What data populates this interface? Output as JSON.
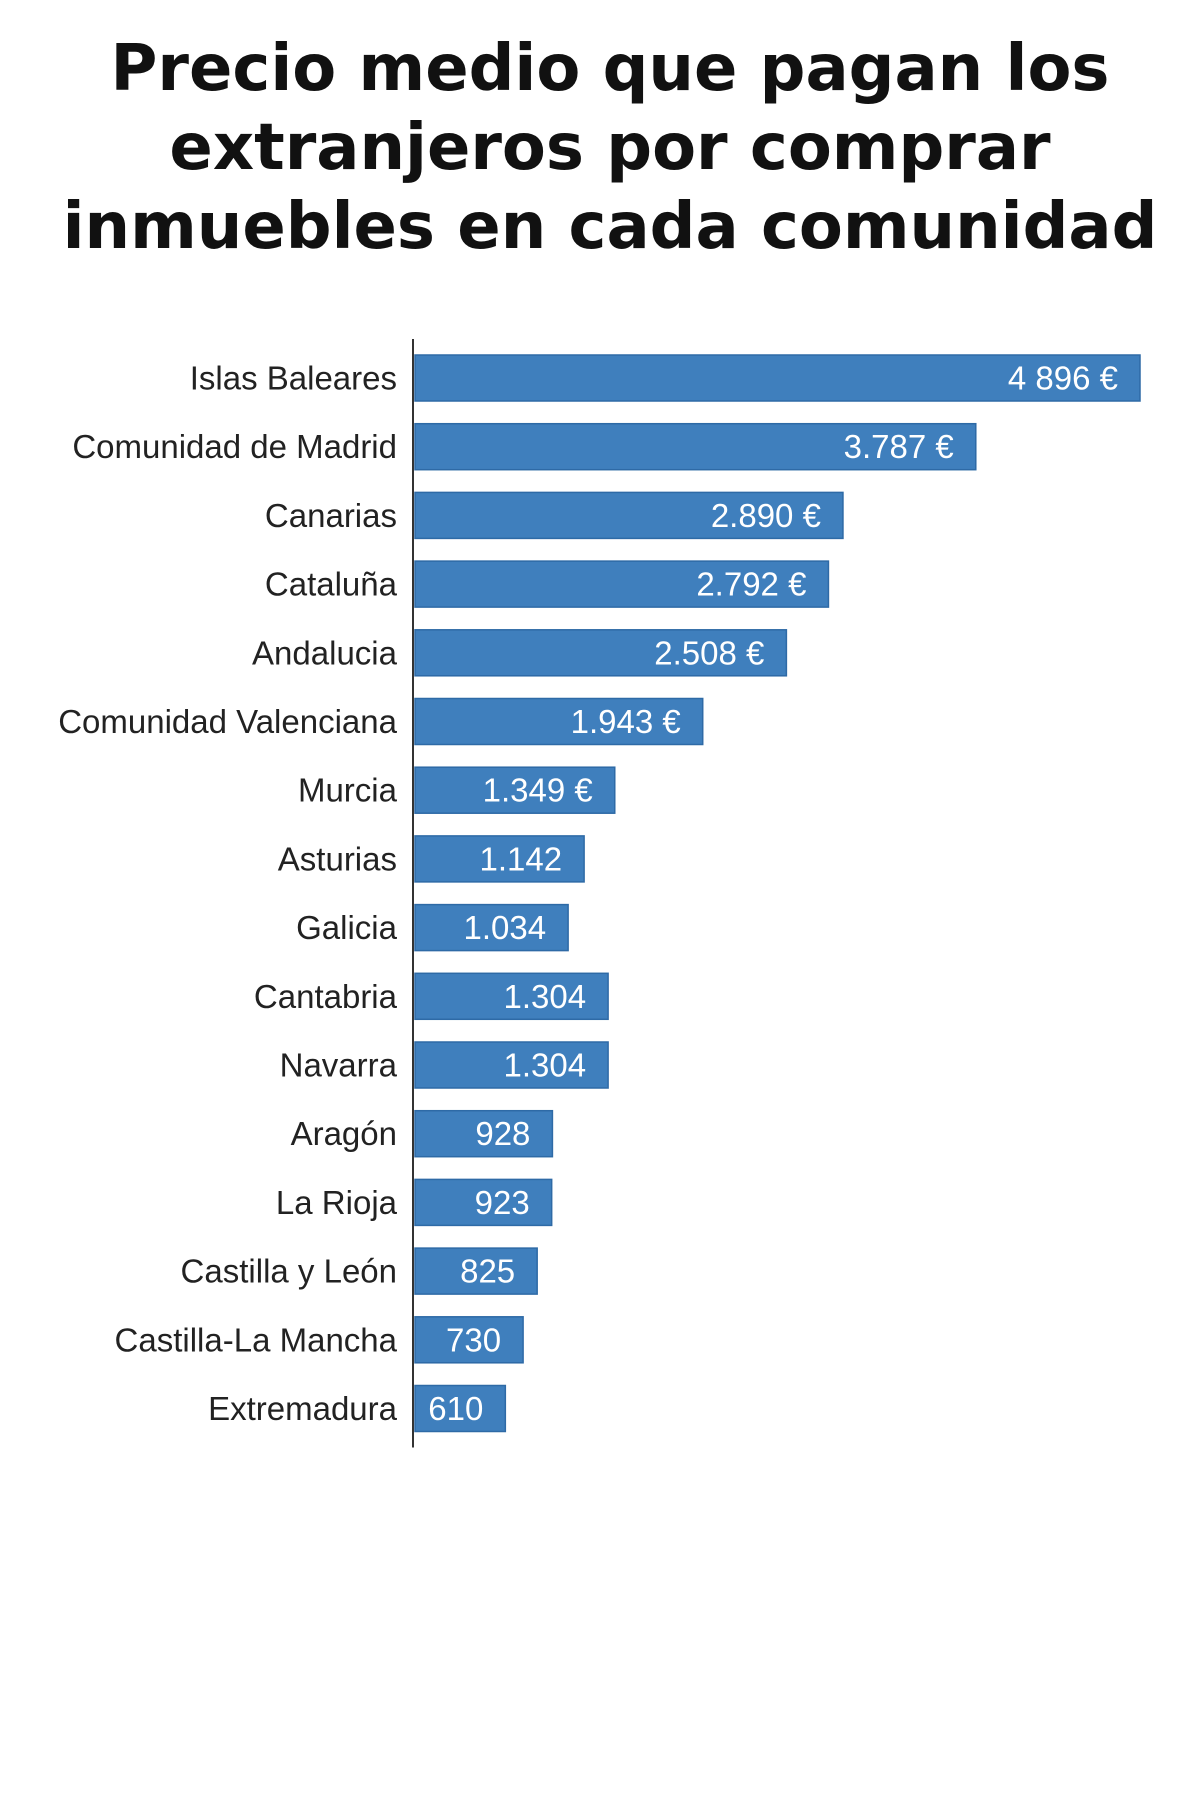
{
  "chart_data": {
    "type": "bar",
    "orientation": "horizontal",
    "title_lines": [
      "Precio medio que pagan los",
      "extranjeros por comprar",
      "inmuebles en cada comunidad"
    ],
    "categories": [
      "Islas Baleares",
      "Comunidad de Madrid",
      "Canarias",
      "Cataluña",
      "Andalucia",
      "Comunidad Valenciana",
      "Murcia",
      "Asturias",
      "Galicia",
      "Cantabria",
      "Navarra",
      "Aragón",
      "La Rioja",
      "Castilla y León",
      "Castilla-La Mancha",
      "Extremadura"
    ],
    "values": [
      4896,
      3787,
      2890,
      2792,
      2508,
      1943,
      1349,
      1142,
      1034,
      1304,
      1304,
      928,
      923,
      825,
      730,
      610
    ],
    "value_labels": [
      "4 896 €",
      "3.787 €",
      "2.890 €",
      "2.792 €",
      "2.508 €",
      "1.943 €",
      "1.349 €",
      "1.142",
      "1.034",
      "1.304",
      "1.304",
      "928",
      "923",
      "825",
      "730",
      "610"
    ],
    "grid": false,
    "legend": "none",
    "colors": {
      "bar": "#3f7fbd",
      "bar_edge": "#2e6aa6",
      "axis": "#333333",
      "value_text": "#ffffff",
      "category_text": "#222222",
      "title_text": "#111111"
    }
  }
}
